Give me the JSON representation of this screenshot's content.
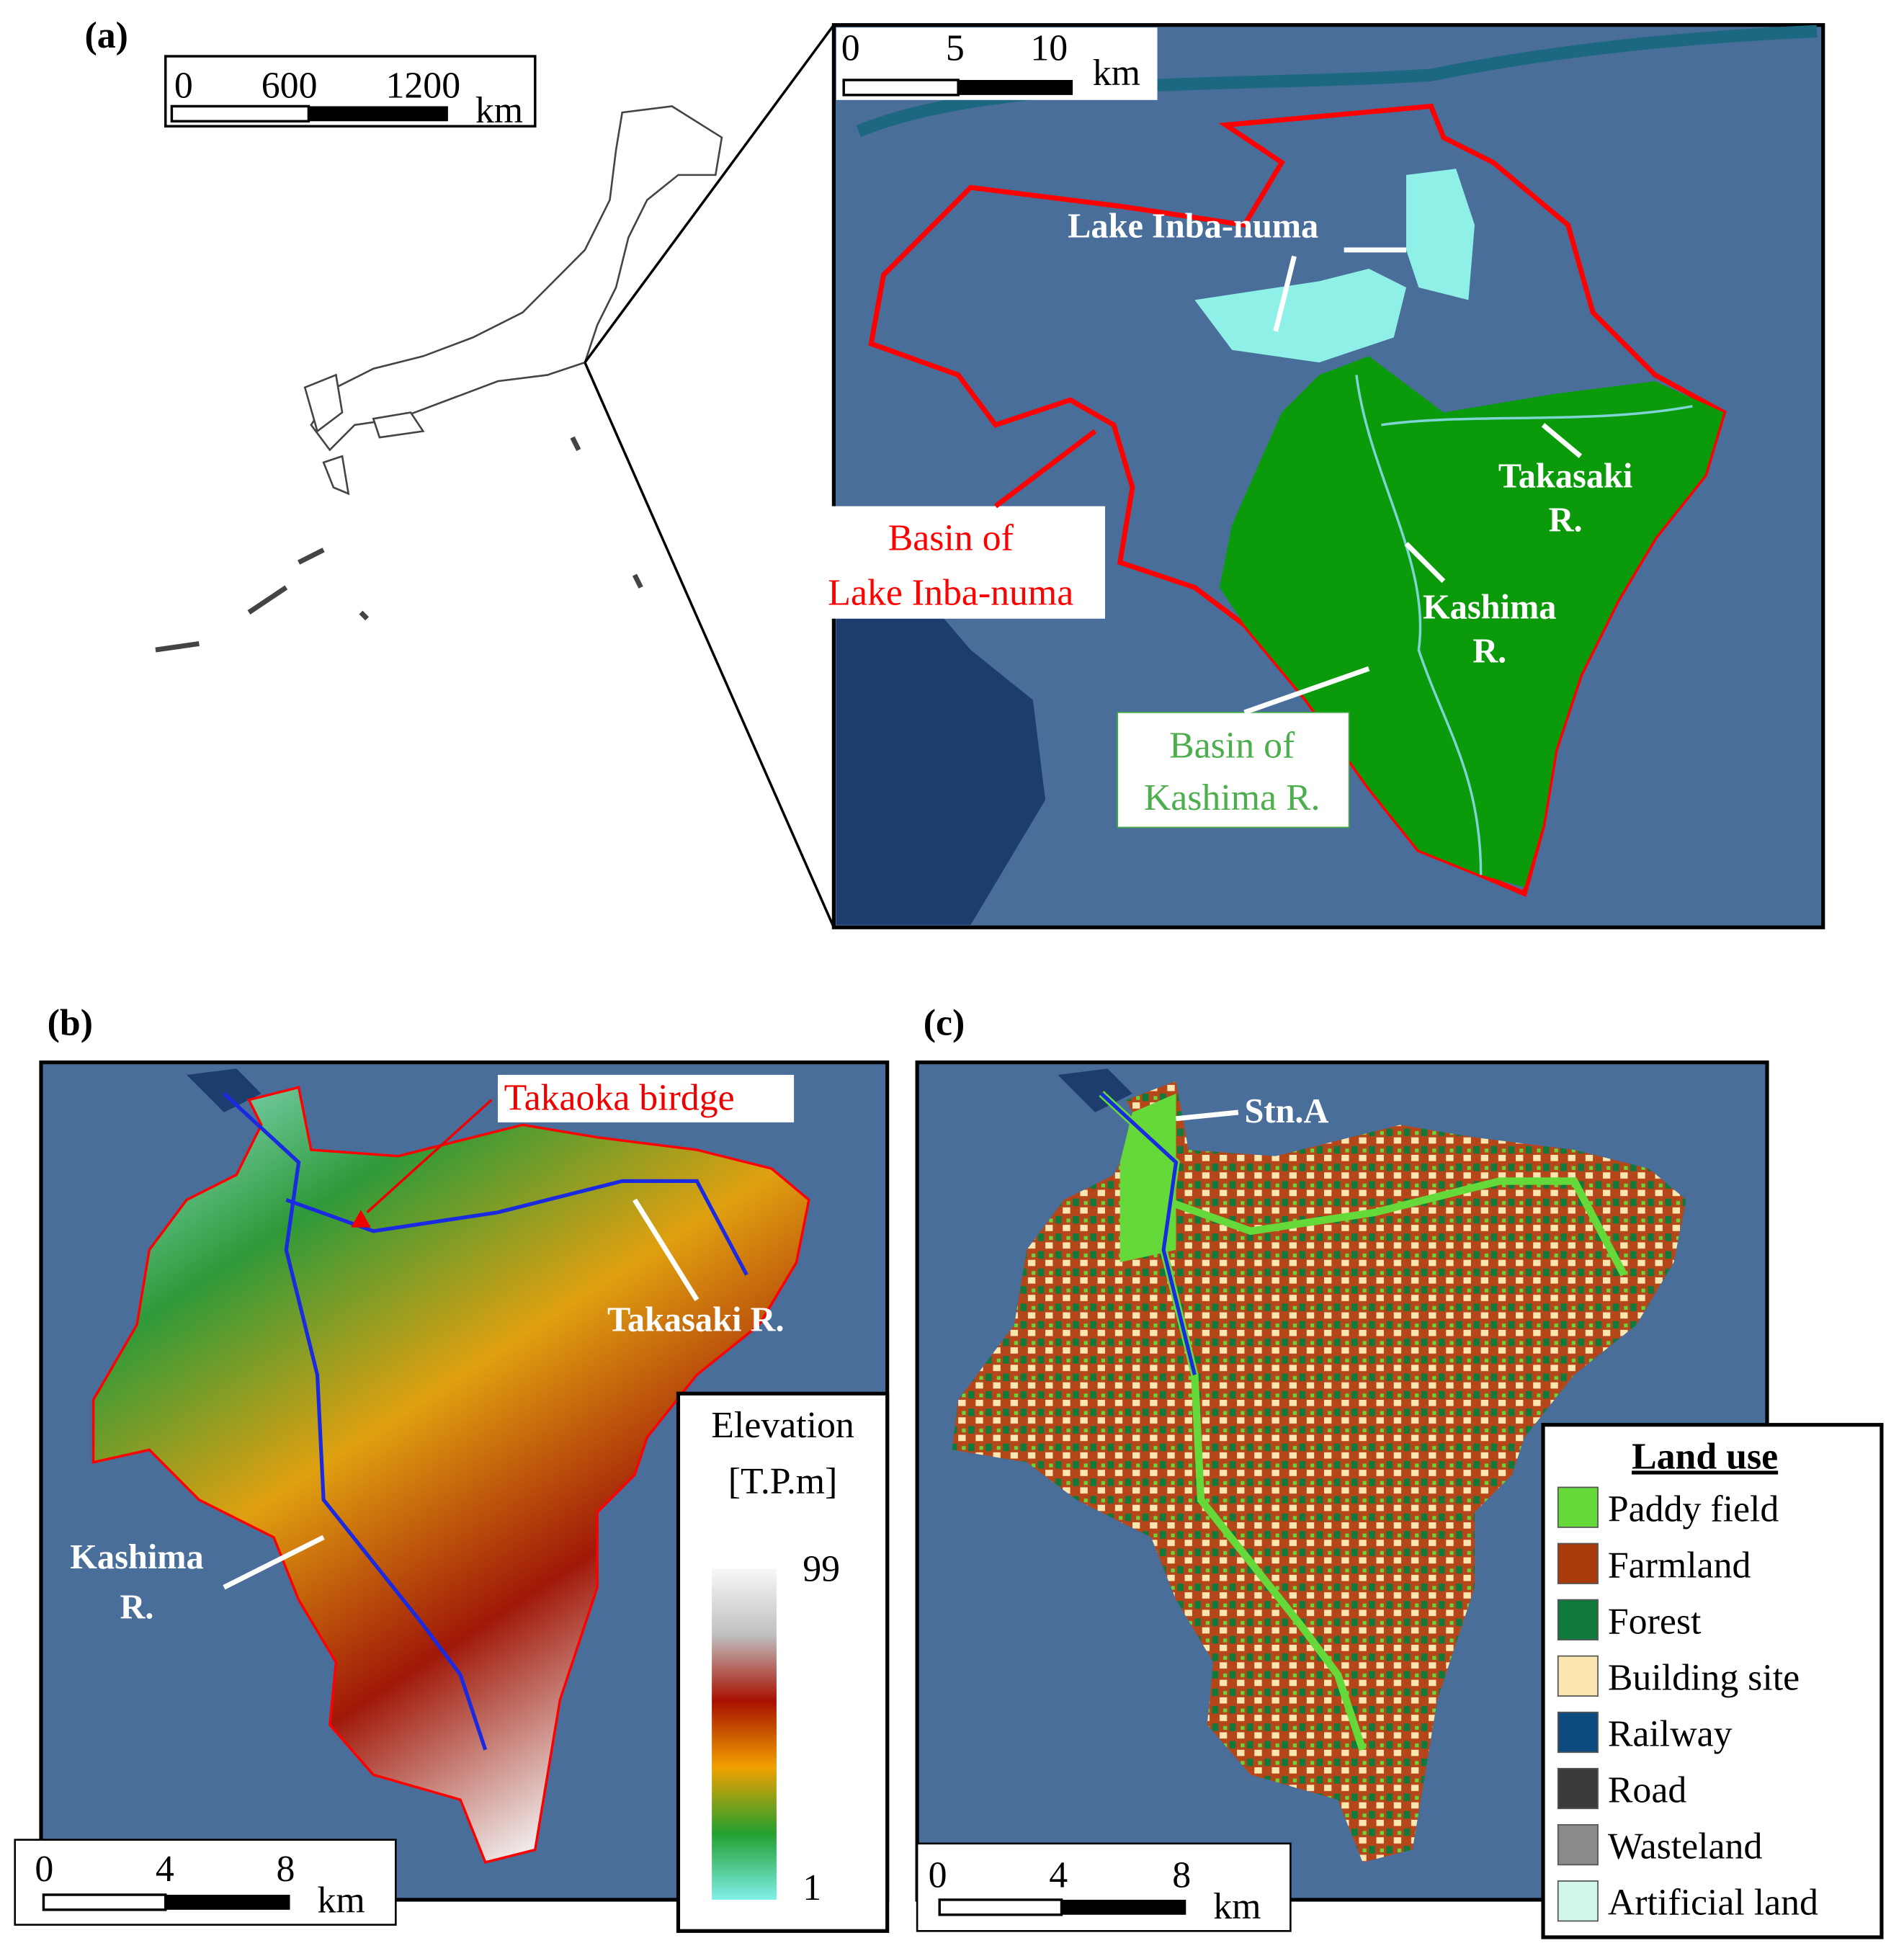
{
  "panel_a": {
    "label": "(a)",
    "japan_scale": {
      "ticks": [
        "0",
        "600",
        "1200"
      ],
      "unit": "km"
    },
    "inset_scale": {
      "ticks": [
        "0",
        "5",
        "10"
      ],
      "unit": "km"
    },
    "lake_label": "Lake Inba-numa",
    "takasaki": [
      "Takasaki",
      "R."
    ],
    "kashima": [
      "Kashima",
      "R."
    ],
    "basin_lake": [
      "Basin of",
      "Lake Inba-numa"
    ],
    "basin_kashima": [
      "Basin of",
      "Kashima R."
    ]
  },
  "panel_b": {
    "label": "(b)",
    "bridge": "Takaoka birdge",
    "takasaki": "Takasaki R.",
    "kashima": [
      "Kashima",
      "R."
    ],
    "scale": {
      "ticks": [
        "0",
        "4",
        "8"
      ],
      "unit": "km"
    },
    "elevation": {
      "title": [
        "Elevation",
        "[T.P.m]"
      ],
      "max": "99",
      "min": "1"
    }
  },
  "panel_c": {
    "label": "(c)",
    "station": "Stn.A",
    "scale": {
      "ticks": [
        "0",
        "4",
        "8"
      ],
      "unit": "km"
    },
    "legend": {
      "title": "Land use",
      "items": [
        {
          "label": "Paddy field",
          "color": "#66d93a"
        },
        {
          "label": "Farmland",
          "color": "#a83a0c"
        },
        {
          "label": "Forest",
          "color": "#0f7a3c"
        },
        {
          "label": "Building site",
          "color": "#fbe6b0"
        },
        {
          "label": "Railway",
          "color": "#0c4a80"
        },
        {
          "label": "Road",
          "color": "#3a3a3a"
        },
        {
          "label": "Wasteland",
          "color": "#8a8a8a"
        },
        {
          "label": "Artificial land",
          "color": "#d2f8ee"
        }
      ]
    }
  }
}
